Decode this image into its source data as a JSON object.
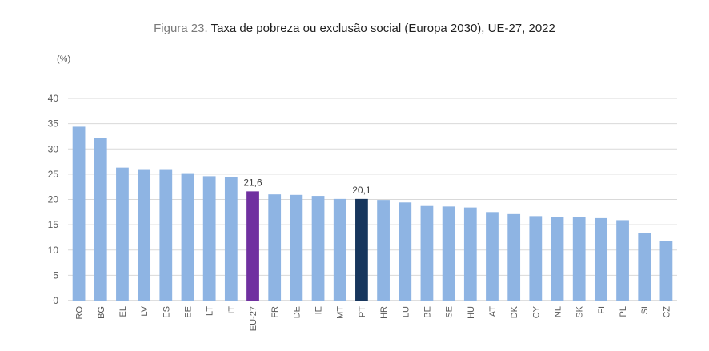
{
  "chart_data": {
    "type": "bar",
    "title_prefix": "Figura 23.",
    "title": "Taxa de pobreza ou exclusão social (Europa 2030), UE-27, 2022",
    "unit_label": "(%)",
    "xlabel": "",
    "ylabel": "",
    "ylim": [
      0,
      40
    ],
    "yticks": [
      0,
      5,
      10,
      15,
      20,
      25,
      30,
      35,
      40
    ],
    "grid": true,
    "categories": [
      "RO",
      "BG",
      "EL",
      "LV",
      "ES",
      "EE",
      "LT",
      "IT",
      "EU-27",
      "FR",
      "DE",
      "IE",
      "MT",
      "PT",
      "HR",
      "LU",
      "BE",
      "SE",
      "HU",
      "AT",
      "DK",
      "CY",
      "NL",
      "SK",
      "FI",
      "PL",
      "SI",
      "CZ"
    ],
    "values": [
      34.4,
      32.2,
      26.3,
      26.0,
      26.0,
      25.2,
      24.6,
      24.4,
      21.6,
      21.0,
      20.9,
      20.7,
      20.1,
      20.1,
      19.9,
      19.4,
      18.7,
      18.6,
      18.4,
      17.5,
      17.1,
      16.7,
      16.5,
      16.5,
      16.3,
      15.9,
      13.3,
      11.8
    ],
    "data_labels": {
      "EU-27": "21,6",
      "PT": "20,1"
    },
    "colors": {
      "default": "#8eb4e3",
      "highlights": {
        "EU-27": "#7030a0",
        "PT": "#17365d"
      },
      "grid": "#d9d9d9",
      "axis": "#bfbfbf"
    }
  }
}
